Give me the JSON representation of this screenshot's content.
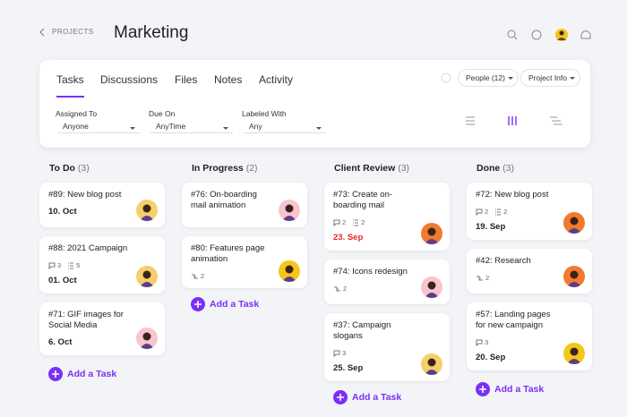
{
  "header": {
    "back": "PROJECTS",
    "title": "Marketing"
  },
  "tabs": [
    "Tasks",
    "Discussions",
    "Files",
    "Notes",
    "Activity"
  ],
  "toolbar": {
    "people": "People (12)",
    "project_info": "Project Info"
  },
  "filters": [
    {
      "label": "Assigned To",
      "value": "Anyone"
    },
    {
      "label": "Due On",
      "value": "AnyTime"
    },
    {
      "label": "Labeled With",
      "value": "Any"
    }
  ],
  "columns": [
    {
      "title": "To Do",
      "count": "(3)",
      "add": "Add a Task",
      "cards": [
        {
          "title": "#89: New blog post",
          "date": "10. Oct",
          "avatar": "#f7cf6a"
        },
        {
          "title": "#88: 2021 Campaign",
          "comments": 3,
          "subtasks": 5,
          "date": "01. Oct",
          "avatar": "#f7cf6a"
        },
        {
          "title": "#71: GIF images for Social Media",
          "date": "6. Oct",
          "avatar": "#f9c4cf"
        }
      ]
    },
    {
      "title": "In Progress",
      "count": "(2)",
      "add": "Add a Task",
      "cards": [
        {
          "title": "#76: On-boarding mail animation",
          "avatar": "#f9c4cf"
        },
        {
          "title": "#80: Features page animation",
          "links": 2,
          "avatar": "#f5c518"
        }
      ]
    },
    {
      "title": "Client Review",
      "count": "(3)",
      "add": "Add a Task",
      "cards": [
        {
          "title": "#73: Create on-boarding mail",
          "comments": 2,
          "subtasks": 2,
          "date": "23. Sep",
          "overdue": true,
          "avatar": "#f27a2e"
        },
        {
          "title": "#74: Icons redesign",
          "links": 2,
          "avatar": "#f9c4cf"
        },
        {
          "title": "#37: Campaign slogans",
          "comments": 3,
          "date": "25. Sep",
          "avatar": "#f7cf6a"
        }
      ]
    },
    {
      "title": "Done",
      "count": "(3)",
      "add": "Add a Task",
      "cards": [
        {
          "title": "#72: New blog post",
          "comments": 2,
          "subtasks": 2,
          "date": "19. Sep",
          "avatar": "#f27a2e"
        },
        {
          "title": "#42: Research",
          "links": 2,
          "avatar": "#f27a2e"
        },
        {
          "title": "#57: Landing pages for new campaign",
          "comments": 3,
          "date": "20. Sep",
          "avatar": "#f5c518"
        }
      ]
    }
  ]
}
